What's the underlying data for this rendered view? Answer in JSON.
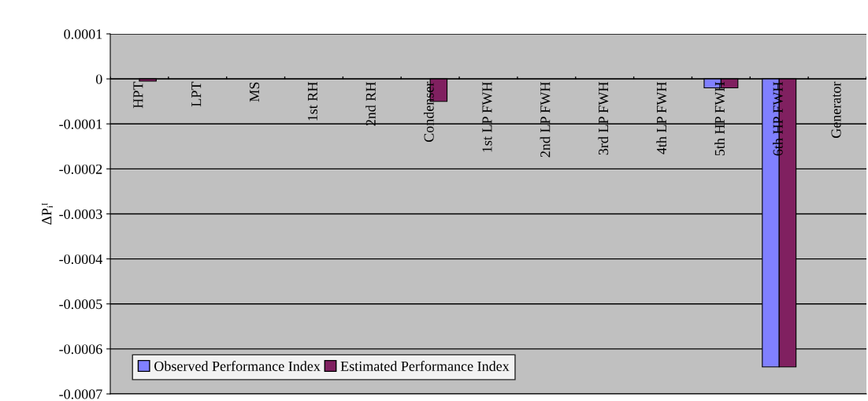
{
  "chart_data": {
    "type": "bar",
    "ylabel": "ΔPᵢᴵ",
    "categories": [
      "HPT",
      "LPT",
      "MS",
      "1st RH",
      "2nd RH",
      "Condenser",
      "1st LP FWH",
      "2nd LP FWH",
      "3rd LP FWH",
      "4th LP FWH",
      "5th HP FWH",
      "6th HP FWH",
      "Generator"
    ],
    "series": [
      {
        "name": "Observed Performance Index",
        "color": "#8080ff",
        "values": [
          null,
          null,
          null,
          null,
          null,
          null,
          null,
          null,
          null,
          null,
          -2e-05,
          -0.00064,
          null
        ]
      },
      {
        "name": "Estimated Performance Index",
        "color": "#802060",
        "values": [
          -5e-06,
          null,
          null,
          null,
          null,
          -5e-05,
          null,
          null,
          null,
          null,
          -2e-05,
          -0.00064,
          null
        ]
      }
    ],
    "ylim": [
      -0.0007,
      0.0001
    ],
    "yticks": [
      0.0001,
      0,
      -0.0001,
      -0.0002,
      -0.0003,
      -0.0004,
      -0.0005,
      -0.0006,
      -0.0007
    ],
    "grid": "y",
    "legend": "bottom left"
  }
}
